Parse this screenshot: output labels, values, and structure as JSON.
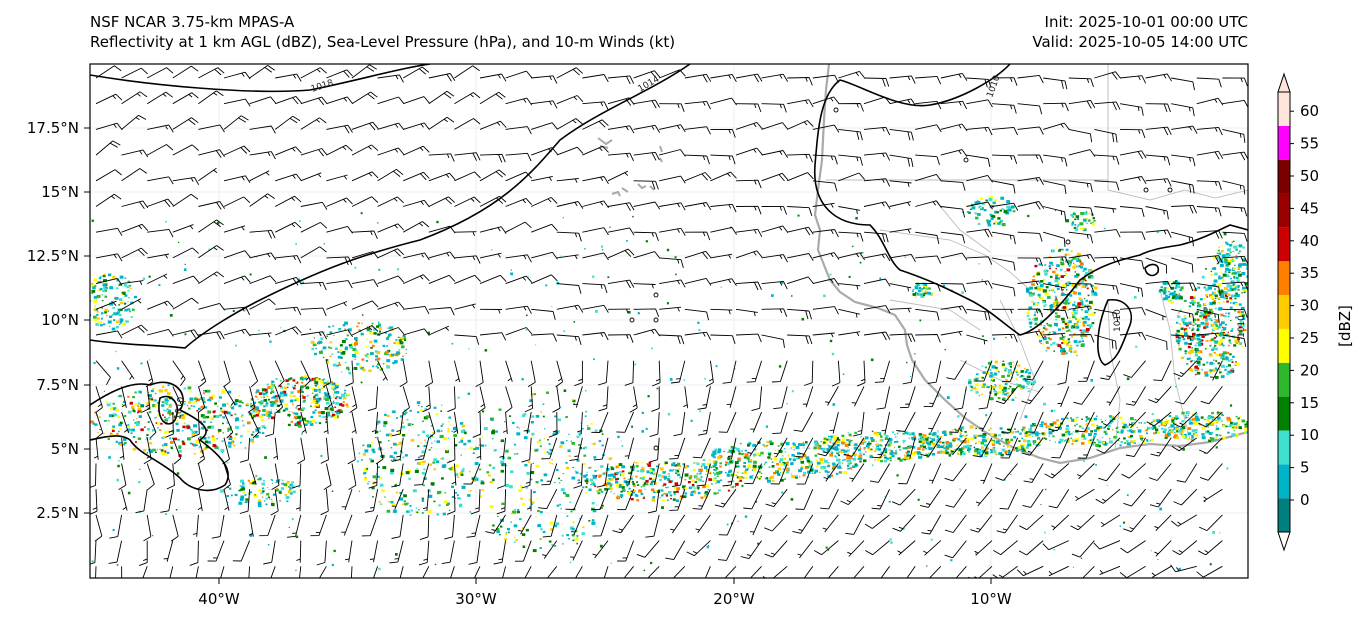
{
  "header": {
    "model": "NSF NCAR 3.75-km MPAS-A",
    "fields": "Reflectivity at 1 km AGL (dBZ), Sea-Level Pressure (hPa), and 10-m Winds (kt)",
    "init": "Init: 2025-10-01 00:00 UTC",
    "valid": "Valid: 2025-10-05 14:00 UTC"
  },
  "map": {
    "lon_labels": [
      "40°W",
      "30°W",
      "20°W",
      "10°W"
    ],
    "lat_labels": [
      "17.5°N",
      "15°N",
      "12.5°N",
      "10°N",
      "7.5°N",
      "5°N",
      "2.5°N"
    ],
    "contour_labels": [
      "1018",
      "1014",
      "1010",
      "1010",
      "1010",
      "1010"
    ]
  },
  "colorbar": {
    "unit_label": "[dBZ]",
    "ticks": [
      "0",
      "5",
      "10",
      "15",
      "20",
      "25",
      "30",
      "35",
      "40",
      "45",
      "50",
      "55",
      "60"
    ],
    "colors": [
      "#007f7f",
      "#00b4c8",
      "#40e0d0",
      "#008000",
      "#2eb82e",
      "#ffff00",
      "#ffcc00",
      "#ff8000",
      "#cc0000",
      "#990000",
      "#7a0000",
      "#ff00ff",
      "#ffe4dc"
    ]
  }
}
